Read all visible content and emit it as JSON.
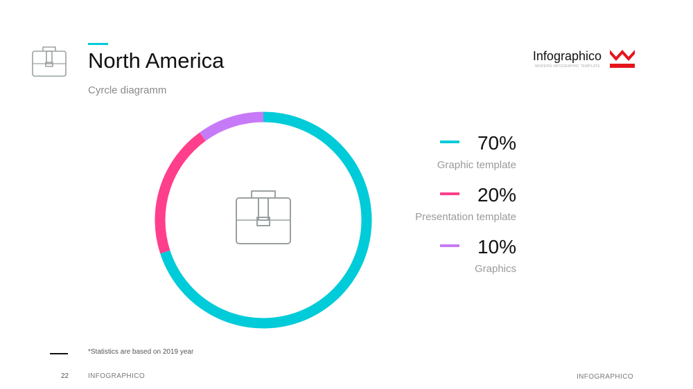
{
  "header": {
    "title": "North America",
    "subtitle": "Cyrcle diagramm",
    "icon": "briefcase-icon"
  },
  "brand": {
    "name": "Infographico",
    "tagline": "MODERN INFOGRAPHIC TEMPLATE",
    "logo_icon": "crown-logo-icon",
    "logo_color": "#e6141c"
  },
  "chart_data": {
    "type": "pie",
    "donut": true,
    "center_icon": "briefcase-icon",
    "slices": [
      {
        "label": "Graphic template",
        "value": 70,
        "display": "70%",
        "color": "#00cbd9"
      },
      {
        "label": "Presentation template",
        "value": 20,
        "display": "20%",
        "color": "#ff3f8b"
      },
      {
        "label": "Graphics",
        "value": 10,
        "display": "10%",
        "color": "#c77af7"
      }
    ],
    "legend_position": "right"
  },
  "footnote": "*Statistics are based on 2019 year",
  "footer": {
    "page_number": "22",
    "left_label": "INFOGRAPHICO",
    "right_label": "INFOGRAPHICO"
  },
  "colors": {
    "accent": "#00cbd9",
    "text": "#111111",
    "muted": "#8a8a8a",
    "icon_stroke": "#9aa0a0"
  }
}
